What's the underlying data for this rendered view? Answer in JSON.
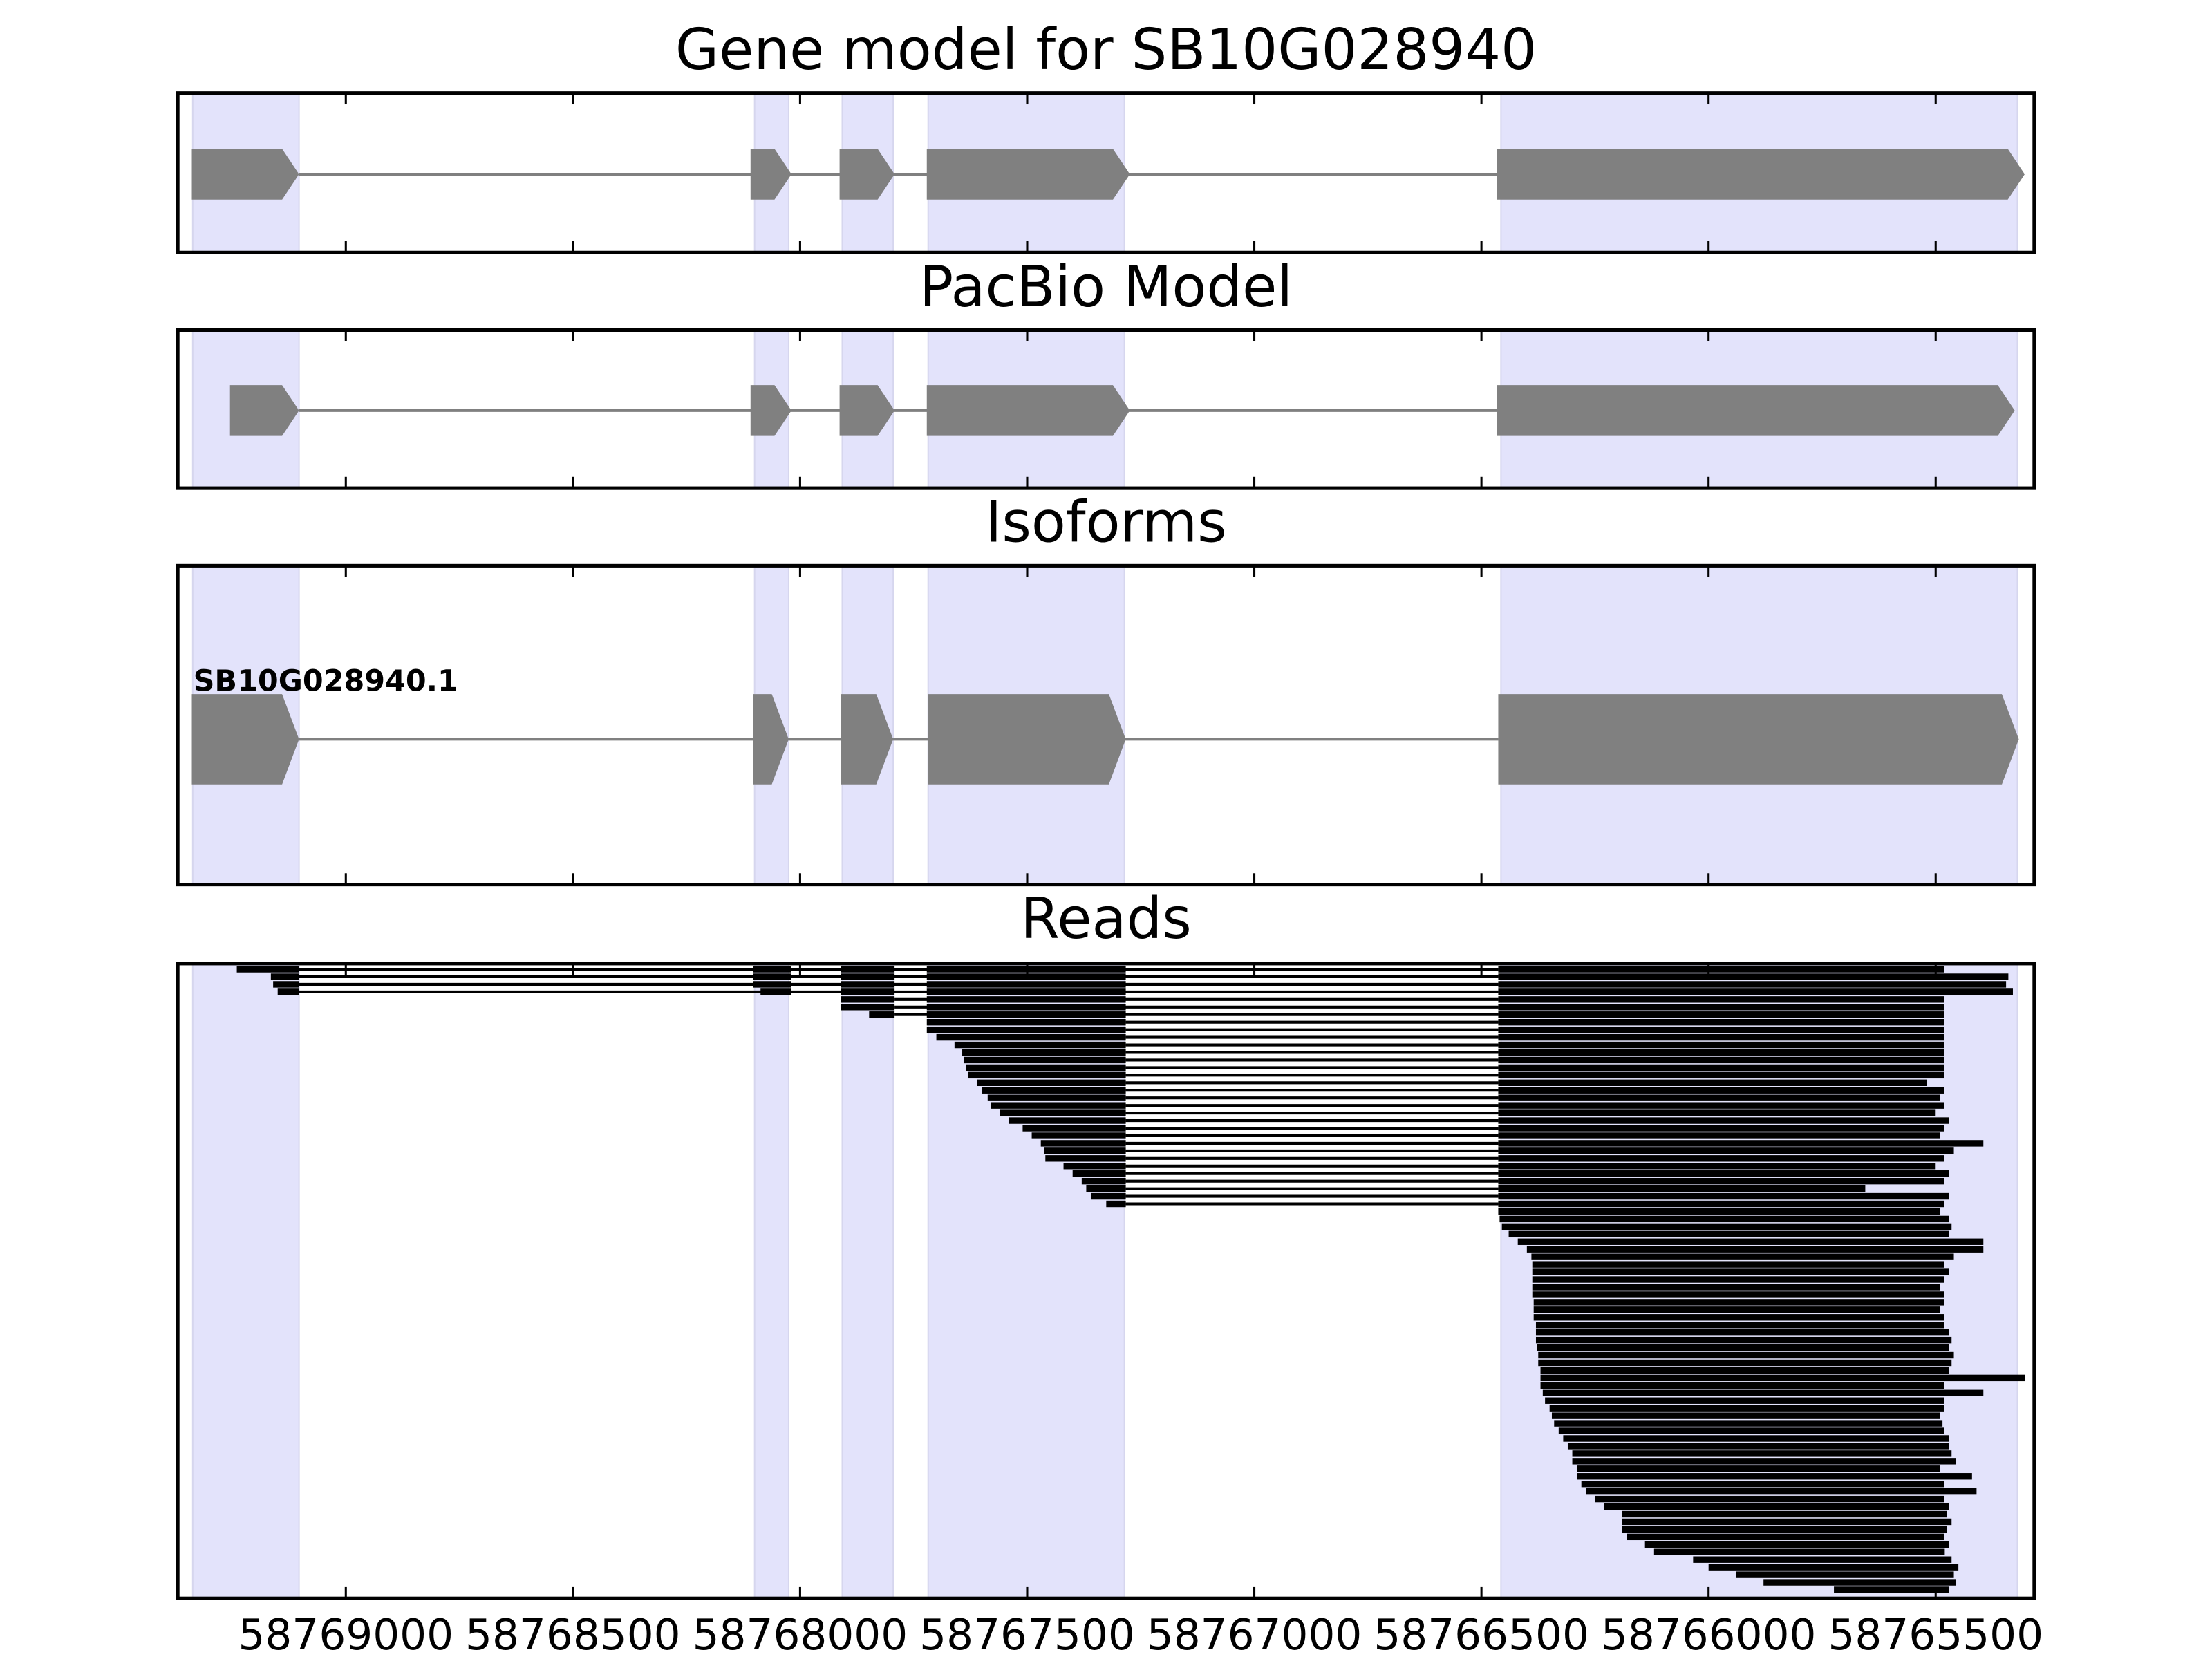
{
  "chart_data": [
    {
      "type": "gene_model",
      "title": "Gene model for SB10G028940",
      "color": "#808080",
      "shade_color": "#e3e3fb",
      "xlim": [
        58769370,
        58765283
      ],
      "xticks": [
        58769000,
        58768500,
        58768000,
        58767500,
        58767000,
        58766500,
        58766000,
        58765500
      ],
      "shaded_regions": [
        [
          58769337,
          58769103
        ],
        [
          58768100,
          58768025
        ],
        [
          58767907,
          58767795
        ],
        [
          58767718,
          58767286
        ],
        [
          58766457,
          58765320
        ]
      ],
      "exons": [
        [
          58769339,
          58769103
        ],
        [
          58768109,
          58768019
        ],
        [
          58767913,
          58767792
        ],
        [
          58767721,
          58767274
        ],
        [
          58766466,
          58765304
        ]
      ]
    },
    {
      "type": "gene_model",
      "title": "PacBio Model",
      "color": "#808080",
      "shade_color": "#e3e3fb",
      "xlim": [
        58769370,
        58765283
      ],
      "xticks": [
        58769000,
        58768500,
        58768000,
        58767500,
        58767000,
        58766500,
        58766000,
        58765500
      ],
      "shaded_regions": [
        [
          58769337,
          58769103
        ],
        [
          58768100,
          58768025
        ],
        [
          58767907,
          58767795
        ],
        [
          58767718,
          58767286
        ],
        [
          58766457,
          58765320
        ]
      ],
      "exons": [
        [
          58769255,
          58769103
        ],
        [
          58768109,
          58768019
        ],
        [
          58767913,
          58767792
        ],
        [
          58767721,
          58767274
        ],
        [
          58766466,
          58765326
        ]
      ]
    },
    {
      "type": "isoforms",
      "title": "Isoforms",
      "color": "#808080",
      "shade_color": "#e3e3fb",
      "xlim": [
        58769370,
        58765283
      ],
      "xticks": [
        58769000,
        58768500,
        58768000,
        58767500,
        58767000,
        58766500,
        58766000,
        58765500
      ],
      "shaded_regions": [
        [
          58769337,
          58769103
        ],
        [
          58768100,
          58768025
        ],
        [
          58767907,
          58767795
        ],
        [
          58767718,
          58767286
        ],
        [
          58766457,
          58765320
        ]
      ],
      "isoforms": [
        {
          "name": "SB10G028940.1",
          "exons": [
            [
              58769339,
              58769103
            ],
            [
              58768103,
              58768025
            ],
            [
              58767910,
              58767795
            ],
            [
              58767718,
              58767283
            ],
            [
              58766463,
              58765317
            ]
          ]
        }
      ]
    },
    {
      "type": "reads",
      "title": "Reads",
      "color": "#000000",
      "shade_color": "#e3e3fb",
      "xlim": [
        58769370,
        58765283
      ],
      "xticks": [
        58769000,
        58768500,
        58768000,
        58767500,
        58767000,
        58766500,
        58766000,
        58765500
      ],
      "shaded_regions": [
        [
          58769337,
          58769103
        ],
        [
          58768100,
          58768025
        ],
        [
          58767907,
          58767795
        ],
        [
          58767718,
          58767286
        ],
        [
          58766457,
          58765320
        ]
      ],
      "reads": [
        [
          [
            58769240,
            58769103
          ],
          [
            58768103,
            58768019
          ],
          [
            58767910,
            58767792
          ],
          [
            58767721,
            58767283
          ],
          [
            58766463,
            58765481
          ]
        ],
        [
          [
            58769165,
            58769103
          ],
          [
            58768103,
            58768019
          ],
          [
            58767910,
            58767792
          ],
          [
            58767721,
            58767283
          ],
          [
            58766463,
            58765340
          ]
        ],
        [
          [
            58769160,
            58769103
          ],
          [
            58768103,
            58768019
          ],
          [
            58767910,
            58767792
          ],
          [
            58767721,
            58767283
          ],
          [
            58766463,
            58765345
          ]
        ],
        [
          [
            58769150,
            58769103
          ],
          [
            58768087,
            58768019
          ],
          [
            58767910,
            58767792
          ],
          [
            58767721,
            58767283
          ],
          [
            58766463,
            58765330
          ]
        ],
        [
          [
            58767910,
            58767792
          ],
          [
            58767721,
            58767283
          ],
          [
            58766463,
            58765481
          ]
        ],
        [
          [
            58767910,
            58767792
          ],
          [
            58767721,
            58767283
          ],
          [
            58766463,
            58765481
          ]
        ],
        [
          [
            58767848,
            58767792
          ],
          [
            58767721,
            58767283
          ],
          [
            58766463,
            58765481
          ]
        ],
        [
          [
            58767721,
            58767283
          ],
          [
            58766463,
            58765481
          ]
        ],
        [
          [
            58767721,
            58767283
          ],
          [
            58766463,
            58765481
          ]
        ],
        [
          [
            58767700,
            58767283
          ],
          [
            58766463,
            58765481
          ]
        ],
        [
          [
            58767660,
            58767283
          ],
          [
            58766463,
            58765481
          ]
        ],
        [
          [
            58767643,
            58767283
          ],
          [
            58766463,
            58765481
          ]
        ],
        [
          [
            58767640,
            58767283
          ],
          [
            58766463,
            58765481
          ]
        ],
        [
          [
            58767635,
            58767283
          ],
          [
            58766463,
            58765481
          ]
        ],
        [
          [
            58767630,
            58767283
          ],
          [
            58766463,
            58765481
          ]
        ],
        [
          [
            58767610,
            58767283
          ],
          [
            58766463,
            58765519
          ]
        ],
        [
          [
            58767600,
            58767283
          ],
          [
            58766463,
            58765481
          ]
        ],
        [
          [
            58767587,
            58767283
          ],
          [
            58766463,
            58765490
          ]
        ],
        [
          [
            58767580,
            58767283
          ],
          [
            58766463,
            58765481
          ]
        ],
        [
          [
            58767560,
            58767283
          ],
          [
            58766463,
            58765500
          ]
        ],
        [
          [
            58767540,
            58767283
          ],
          [
            58766463,
            58765470
          ]
        ],
        [
          [
            58767510,
            58767283
          ],
          [
            58766463,
            58765481
          ]
        ],
        [
          [
            58767490,
            58767283
          ],
          [
            58766463,
            58765490
          ]
        ],
        [
          [
            58767470,
            58767283
          ],
          [
            58766463,
            58765395
          ]
        ],
        [
          [
            58767463,
            58767283
          ],
          [
            58766463,
            58765460
          ]
        ],
        [
          [
            58767460,
            58767283
          ],
          [
            58766463,
            58765481
          ]
        ],
        [
          [
            58767420,
            58767283
          ],
          [
            58766463,
            58765500
          ]
        ],
        [
          [
            58767400,
            58767283
          ],
          [
            58766463,
            58765470
          ]
        ],
        [
          [
            58767380,
            58767283
          ],
          [
            58766463,
            58765481
          ]
        ],
        [
          [
            58767370,
            58767283
          ],
          [
            58766463,
            58765655
          ]
        ],
        [
          [
            58767360,
            58767283
          ],
          [
            58766463,
            58765470
          ]
        ],
        [
          [
            58767326,
            58767283
          ],
          [
            58766463,
            58765481
          ]
        ],
        [
          [
            58766463,
            58765490
          ]
        ],
        [
          [
            58766460,
            58765470
          ]
        ],
        [
          [
            58766455,
            58765465
          ]
        ],
        [
          [
            58766440,
            58765470
          ]
        ],
        [
          [
            58766420,
            58765395
          ]
        ],
        [
          [
            58766400,
            58765395
          ]
        ],
        [
          [
            58766390,
            58765460
          ]
        ],
        [
          [
            58766388,
            58765481
          ]
        ],
        [
          [
            58766388,
            58765470
          ]
        ],
        [
          [
            58766388,
            58765481
          ]
        ],
        [
          [
            58766388,
            58765490
          ]
        ],
        [
          [
            58766388,
            58765481
          ]
        ],
        [
          [
            58766385,
            58765481
          ]
        ],
        [
          [
            58766385,
            58765490
          ]
        ],
        [
          [
            58766385,
            58765481
          ]
        ],
        [
          [
            58766380,
            58765481
          ]
        ],
        [
          [
            58766380,
            58765470
          ]
        ],
        [
          [
            58766380,
            58765465
          ]
        ],
        [
          [
            58766378,
            58765470
          ]
        ],
        [
          [
            58766375,
            58765460
          ]
        ],
        [
          [
            58766375,
            58765465
          ]
        ],
        [
          [
            58766370,
            58765470
          ]
        ],
        [
          [
            58766370,
            58765304
          ]
        ],
        [
          [
            58766370,
            58765481
          ]
        ],
        [
          [
            58766365,
            58765395
          ]
        ],
        [
          [
            58766360,
            58765481
          ]
        ],
        [
          [
            58766350,
            58765481
          ]
        ],
        [
          [
            58766345,
            58765490
          ]
        ],
        [
          [
            58766340,
            58765485
          ]
        ],
        [
          [
            58766330,
            58765481
          ]
        ],
        [
          [
            58766320,
            58765470
          ]
        ],
        [
          [
            58766310,
            58765470
          ]
        ],
        [
          [
            58766300,
            58765465
          ]
        ],
        [
          [
            58766300,
            58765455
          ]
        ],
        [
          [
            58766290,
            58765490
          ]
        ],
        [
          [
            58766290,
            58765420
          ]
        ],
        [
          [
            58766280,
            58765481
          ]
        ],
        [
          [
            58766270,
            58765410
          ]
        ],
        [
          [
            58766250,
            58765481
          ]
        ],
        [
          [
            58766230,
            58765470
          ]
        ],
        [
          [
            58766190,
            58765475
          ]
        ],
        [
          [
            58766190,
            58765465
          ]
        ],
        [
          [
            58766190,
            58765475
          ]
        ],
        [
          [
            58766180,
            58765481
          ]
        ],
        [
          [
            58766140,
            58765470
          ]
        ],
        [
          [
            58766120,
            58765480
          ]
        ],
        [
          [
            58766034,
            58765465
          ]
        ],
        [
          [
            58766000,
            58765450
          ]
        ],
        [
          [
            58765940,
            58765460
          ]
        ],
        [
          [
            58765879,
            58765455
          ]
        ],
        [
          [
            58765724,
            58765470
          ]
        ]
      ]
    }
  ]
}
